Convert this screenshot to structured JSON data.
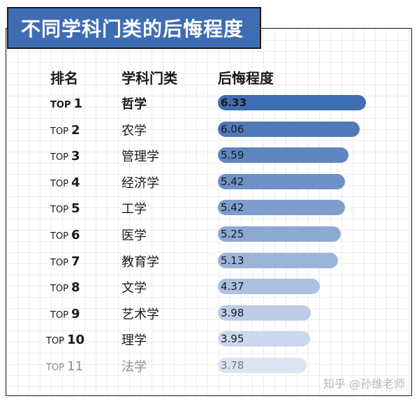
{
  "title": "不同学科门类的后悔程度",
  "headers": {
    "rank": "排名",
    "subject": "学科门类",
    "value": "后悔程度"
  },
  "watermark": "知乎 @孙维老师",
  "colors": {
    "bar_start": "#3f6db3",
    "bar_end": "#dbe4f3",
    "title_bg": "#3f6db3"
  },
  "chart_data": {
    "type": "bar",
    "orientation": "horizontal",
    "title": "不同学科门类的后悔程度",
    "xlim": [
      0,
      7
    ],
    "rows": [
      {
        "rank_prefix": "TOP",
        "rank_num": "1",
        "subject": "哲学",
        "value": "6.33"
      },
      {
        "rank_prefix": "TOP",
        "rank_num": "2",
        "subject": "农学",
        "value": "6.06"
      },
      {
        "rank_prefix": "TOP",
        "rank_num": "3",
        "subject": "管理学",
        "value": "5.59"
      },
      {
        "rank_prefix": "TOP",
        "rank_num": "4",
        "subject": "经济学",
        "value": "5.42"
      },
      {
        "rank_prefix": "TOP",
        "rank_num": "5",
        "subject": "工学",
        "value": "5.42"
      },
      {
        "rank_prefix": "TOP",
        "rank_num": "6",
        "subject": "医学",
        "value": "5.25"
      },
      {
        "rank_prefix": "TOP",
        "rank_num": "7",
        "subject": "教育学",
        "value": "5.13"
      },
      {
        "rank_prefix": "TOP",
        "rank_num": "8",
        "subject": "文学",
        "value": "4.37"
      },
      {
        "rank_prefix": "TOP",
        "rank_num": "9",
        "subject": "艺术学",
        "value": "3.98"
      },
      {
        "rank_prefix": "TOP",
        "rank_num": "10",
        "subject": "理学",
        "value": "3.95"
      },
      {
        "rank_prefix": "TOP",
        "rank_num": "11",
        "subject": "法学",
        "value": "3.78"
      }
    ]
  }
}
